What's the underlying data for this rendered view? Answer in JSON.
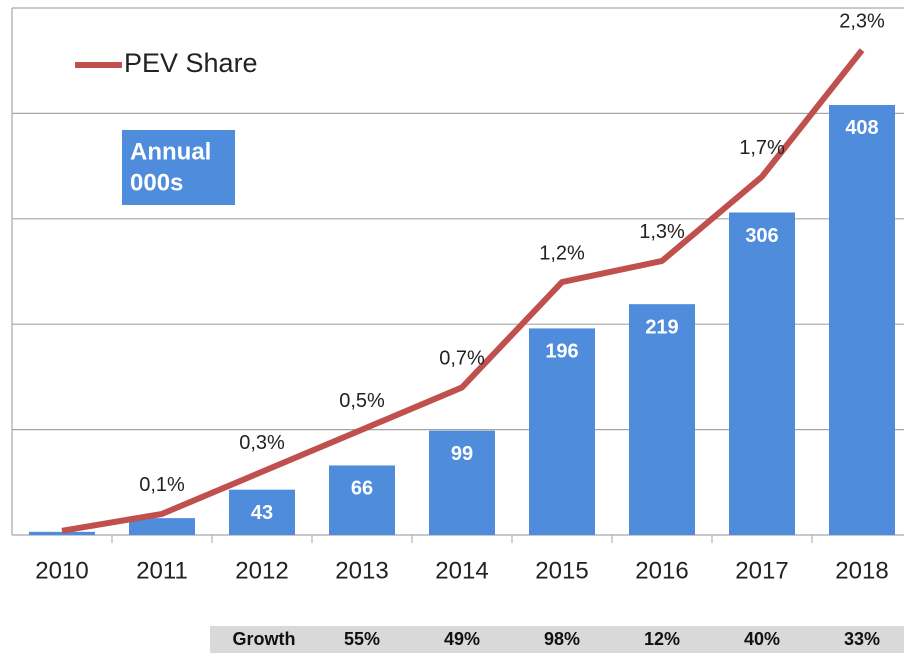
{
  "chart_data": {
    "type": "bar",
    "categories": [
      "2010",
      "2011",
      "2012",
      "2013",
      "2014",
      "2015",
      "2016",
      "2017",
      "2018"
    ],
    "ylim": [
      0,
      500
    ],
    "yticks": [
      0,
      100,
      200,
      300,
      400,
      500
    ],
    "y2lim": [
      0,
      2.5
    ],
    "grid": true,
    "annotation": [
      "Annual",
      "000s"
    ],
    "series": [
      {
        "name": "Annual",
        "type": "bar",
        "color": "#4f8cdb",
        "values": [
          3,
          16,
          43,
          66,
          99,
          196,
          219,
          306,
          408
        ],
        "value_labels": [
          null,
          null,
          "43",
          "66",
          "99",
          "196",
          "219",
          "306",
          "408"
        ]
      },
      {
        "name": "PEV Share",
        "type": "line",
        "axis": "y2",
        "color": "#c0504d",
        "values": [
          0.02,
          0.1,
          0.3,
          0.5,
          0.7,
          1.2,
          1.3,
          1.7,
          2.3
        ],
        "value_labels": [
          null,
          "0,1%",
          "0,3%",
          "0,5%",
          "0,7%",
          "1,2%",
          "1,3%",
          "1,7%",
          "2,3%"
        ]
      }
    ],
    "growth": {
      "label": "Growth",
      "start": 2,
      "cells": [
        "55%",
        "49%",
        "98%",
        "12%",
        "40%",
        "33%"
      ]
    }
  }
}
